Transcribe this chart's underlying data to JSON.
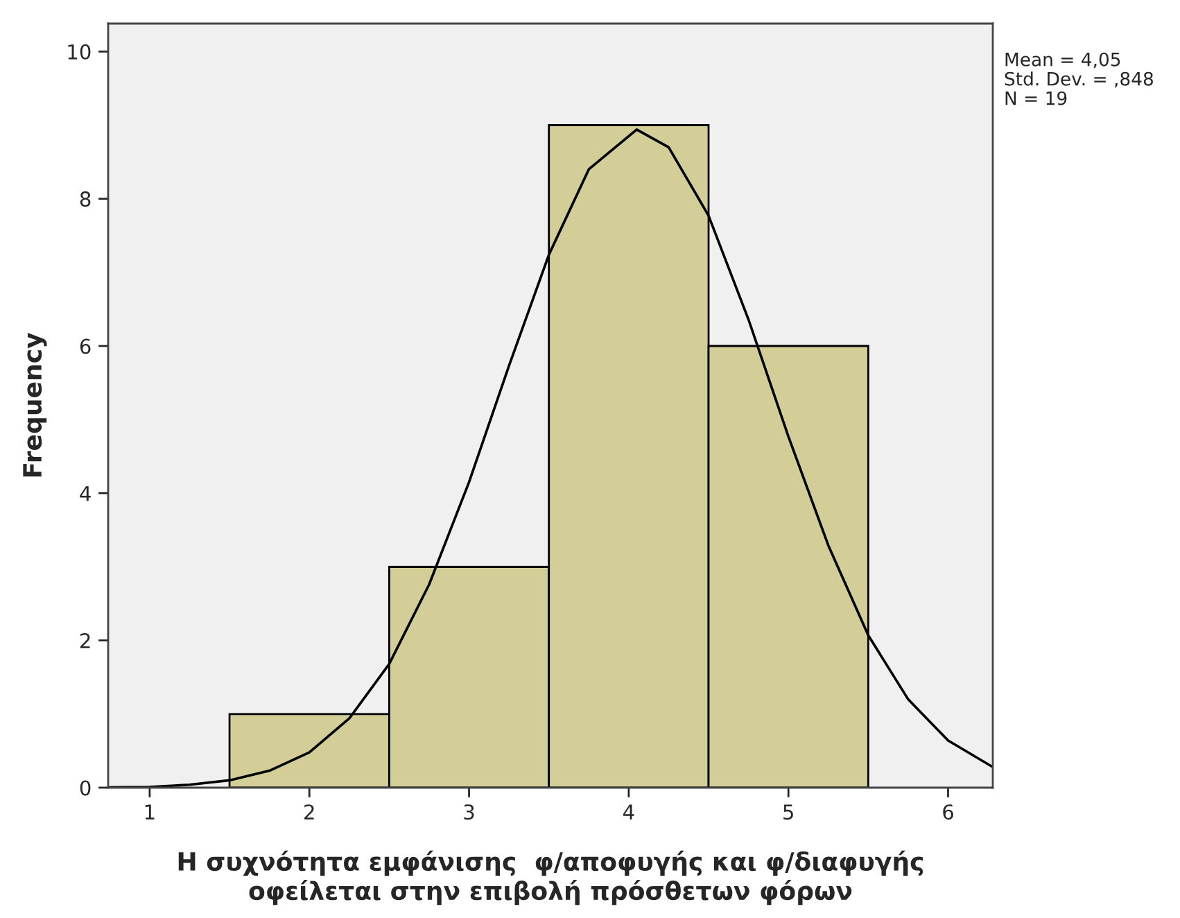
{
  "chart_data": {
    "type": "histogram",
    "xlabel": "Η συχνότητα εμφάνισης  φ/αποφυγής και φ/διαφυγής\nοφείλεται στην επιβολή πρόσθετων φόρων",
    "ylabel": "Frequency",
    "bins": [
      1.5,
      2.5,
      3.5,
      4.5,
      5.5
    ],
    "values": [
      1,
      3,
      9,
      6
    ],
    "color": "#d3ce97",
    "series": [
      {
        "type": "line",
        "color": "#000000",
        "x": [
          0.75,
          1.0,
          1.25,
          1.5,
          1.75,
          2.0,
          2.25,
          2.5,
          2.75,
          3.0,
          3.25,
          3.5,
          3.75,
          4.05,
          4.25,
          4.5,
          4.75,
          5.0,
          5.25,
          5.5,
          5.75,
          6.0,
          6.28
        ],
        "values": [
          0.005,
          0.01,
          0.04,
          0.1,
          0.23,
          0.48,
          0.94,
          1.68,
          2.76,
          4.15,
          5.73,
          7.24,
          8.4,
          8.94,
          8.7,
          7.77,
          6.36,
          4.77,
          3.29,
          2.07,
          1.2,
          0.64,
          0.28
        ]
      }
    ],
    "xlim": [
      0.74,
      6.28
    ],
    "xticks": [
      1,
      2,
      3,
      4,
      5,
      6
    ],
    "ylim": [
      0,
      10.38
    ],
    "yticks": [
      0,
      2,
      4,
      6,
      8,
      10
    ],
    "grid": false,
    "legend": false,
    "annotations": [
      "Mean = 4,05",
      "Std. Dev. = ,848",
      "N = 19"
    ]
  }
}
